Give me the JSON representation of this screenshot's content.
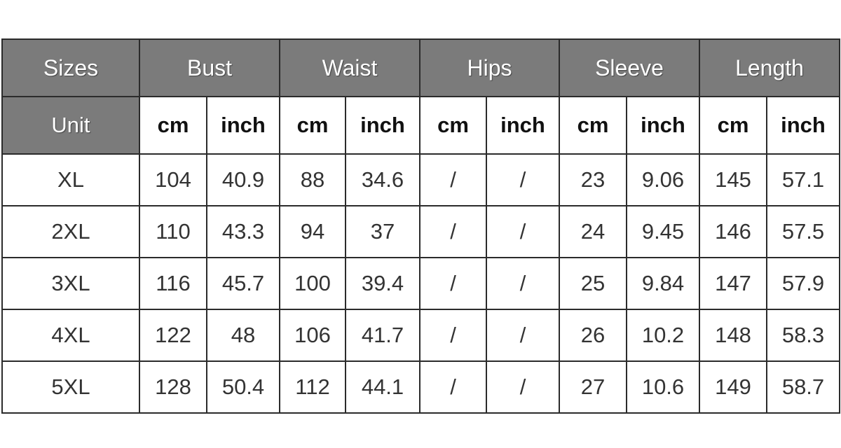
{
  "header": {
    "columns": [
      "Sizes",
      "Bust",
      "Waist",
      "Hips",
      "Sleeve",
      "Length"
    ],
    "units": [
      "Unit",
      "cm",
      "inch",
      "cm",
      "inch",
      "cm",
      "inch",
      "cm",
      "inch",
      "cm",
      "inch"
    ]
  },
  "table": {
    "rows": [
      [
        "XL",
        "104",
        "40.9",
        "88",
        "34.6",
        "/",
        "/",
        "23",
        "9.06",
        "145",
        "57.1"
      ],
      [
        "2XL",
        "110",
        "43.3",
        "94",
        "37",
        "/",
        "/",
        "24",
        "9.45",
        "146",
        "57.5"
      ],
      [
        "3XL",
        "116",
        "45.7",
        "100",
        "39.4",
        "/",
        "/",
        "25",
        "9.84",
        "147",
        "57.9"
      ],
      [
        "4XL",
        "122",
        "48",
        "106",
        "41.7",
        "/",
        "/",
        "26",
        "10.2",
        "148",
        "58.3"
      ],
      [
        "5XL",
        "128",
        "50.4",
        "112",
        "44.1",
        "/",
        "/",
        "27",
        "10.6",
        "149",
        "58.7"
      ]
    ]
  }
}
